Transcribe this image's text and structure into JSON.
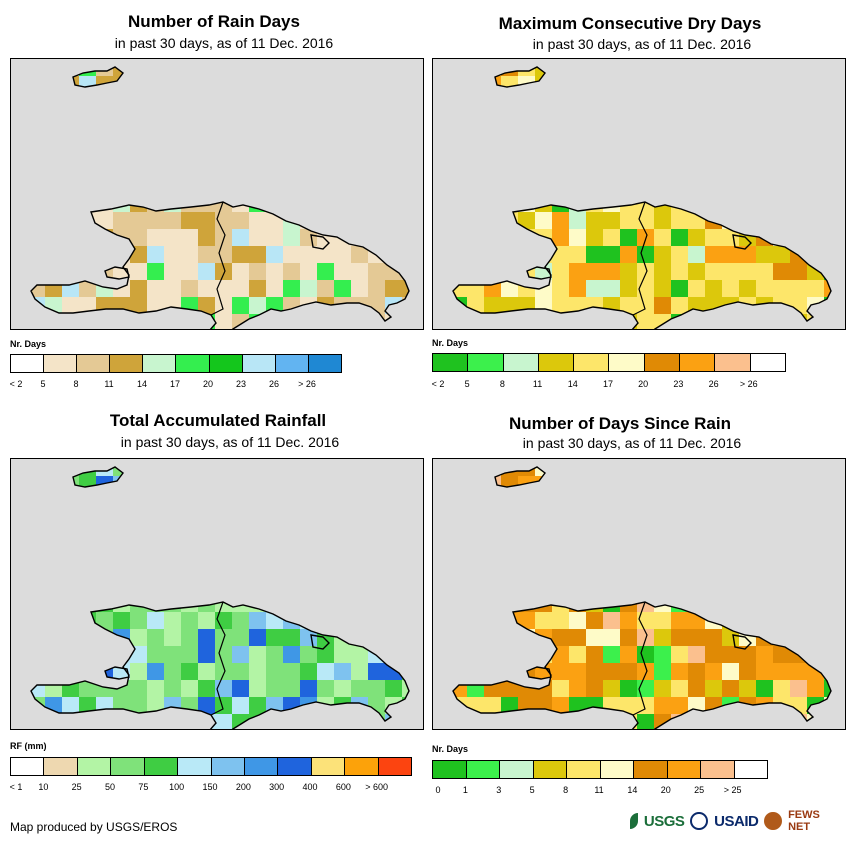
{
  "panels": [
    {
      "title": "Number of Rain Days",
      "subtitle": "in past 30 days, as of 11 Dec. 2016",
      "legend_title": "Nr. Days",
      "legend_colors": [
        "#ffffff",
        "#f4e4c8",
        "#e4c995",
        "#cfa43a",
        "#c8f5cf",
        "#34ee4f",
        "#14c61c",
        "#b8e6f6",
        "#62b4f1",
        "#1f88d3"
      ],
      "legend_labels": [
        "< 2",
        "5",
        "8",
        "11",
        "14",
        "17",
        "20",
        "23",
        "26",
        "> 26"
      ],
      "cell_palette": [
        "#f4e4c8",
        "#e4c995",
        "#cfa43a",
        "#c8f5cf",
        "#34ee4f",
        "#b8e6f6"
      ],
      "cell_weights": [
        5,
        3,
        3,
        1,
        1,
        1
      ]
    },
    {
      "title": "Maximum Consecutive Dry Days",
      "subtitle": "in past 30 days, as of 11 Dec. 2016",
      "legend_title": "Nr. Days",
      "legend_colors": [
        "#1fc21f",
        "#3cf04c",
        "#c8f5cf",
        "#dcc80c",
        "#fde66a",
        "#fefbc8",
        "#e08a05",
        "#fba112",
        "#fbc08e",
        "#ffffff"
      ],
      "legend_labels": [
        "< 2",
        "5",
        "8",
        "11",
        "14",
        "17",
        "20",
        "23",
        "26",
        "> 26"
      ],
      "cell_palette": [
        "#fde66a",
        "#dcc80c",
        "#fefbc8",
        "#fba112",
        "#c8f5cf",
        "#1fc21f",
        "#e08a05"
      ],
      "cell_weights": [
        6,
        4,
        2,
        2,
        1,
        1,
        1
      ]
    },
    {
      "title": "Total Accumulated Rainfall",
      "subtitle": "in past 30 days, as of 11 Dec. 2016",
      "legend_title": "RF (mm)",
      "legend_colors": [
        "#ffffff",
        "#eed8b0",
        "#b3f4a5",
        "#7fe27a",
        "#3fcd43",
        "#b9e9f7",
        "#7ec2ef",
        "#3f97e6",
        "#1f64dd",
        "#fce279",
        "#fca20a",
        "#fc4410"
      ],
      "legend_labels": [
        "< 1",
        "10",
        "25",
        "50",
        "75",
        "100",
        "150",
        "200",
        "300",
        "400",
        "600",
        "> 600"
      ],
      "cell_palette": [
        "#7fe27a",
        "#b3f4a5",
        "#3fcd43",
        "#b9e9f7",
        "#7ec2ef",
        "#3f97e6",
        "#1f64dd"
      ],
      "cell_weights": [
        5,
        3,
        2,
        2,
        2,
        1,
        1
      ]
    },
    {
      "title": "Number of Days Since Rain",
      "subtitle": "in past 30 days, as of 11 Dec. 2016",
      "legend_title": "Nr. Days",
      "legend_colors": [
        "#1fc21f",
        "#3cf04c",
        "#c8f5cf",
        "#dcc80c",
        "#fde66a",
        "#fefbc8",
        "#e08a05",
        "#fba112",
        "#fbc08e",
        "#ffffff"
      ],
      "legend_labels": [
        "0",
        "1",
        "3",
        "5",
        "8",
        "11",
        "14",
        "20",
        "25",
        "> 25"
      ],
      "cell_palette": [
        "#e08a05",
        "#fba112",
        "#fde66a",
        "#fefbc8",
        "#fbc08e",
        "#3cf04c",
        "#1fc21f",
        "#dcc80c"
      ],
      "cell_weights": [
        5,
        3,
        2,
        1,
        1,
        1,
        1,
        1
      ]
    }
  ],
  "credit": "Map produced by USGS/EROS",
  "logos": {
    "usgs": "USGS",
    "usaid": "USAID",
    "fews": "FEWS NET"
  }
}
